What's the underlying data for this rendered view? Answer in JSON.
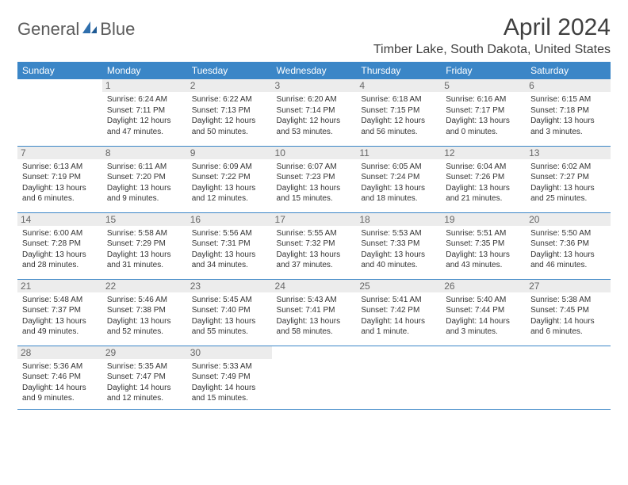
{
  "brand": {
    "part1": "General",
    "part2": "Blue"
  },
  "colors": {
    "header_bg": "#3b86c7",
    "header_text": "#ffffff",
    "daynum_bg": "#ececec",
    "daynum_text": "#666666",
    "body_text": "#333333",
    "title_text": "#404040",
    "logo_gray": "#5a5a5a",
    "logo_blue": "#2f6fad",
    "border": "#3b86c7"
  },
  "title": "April 2024",
  "location": "Timber Lake, South Dakota, United States",
  "day_headers": [
    "Sunday",
    "Monday",
    "Tuesday",
    "Wednesday",
    "Thursday",
    "Friday",
    "Saturday"
  ],
  "weeks": [
    [
      null,
      {
        "n": "1",
        "sr": "Sunrise: 6:24 AM",
        "ss": "Sunset: 7:11 PM",
        "d1": "Daylight: 12 hours",
        "d2": "and 47 minutes."
      },
      {
        "n": "2",
        "sr": "Sunrise: 6:22 AM",
        "ss": "Sunset: 7:13 PM",
        "d1": "Daylight: 12 hours",
        "d2": "and 50 minutes."
      },
      {
        "n": "3",
        "sr": "Sunrise: 6:20 AM",
        "ss": "Sunset: 7:14 PM",
        "d1": "Daylight: 12 hours",
        "d2": "and 53 minutes."
      },
      {
        "n": "4",
        "sr": "Sunrise: 6:18 AM",
        "ss": "Sunset: 7:15 PM",
        "d1": "Daylight: 12 hours",
        "d2": "and 56 minutes."
      },
      {
        "n": "5",
        "sr": "Sunrise: 6:16 AM",
        "ss": "Sunset: 7:17 PM",
        "d1": "Daylight: 13 hours",
        "d2": "and 0 minutes."
      },
      {
        "n": "6",
        "sr": "Sunrise: 6:15 AM",
        "ss": "Sunset: 7:18 PM",
        "d1": "Daylight: 13 hours",
        "d2": "and 3 minutes."
      }
    ],
    [
      {
        "n": "7",
        "sr": "Sunrise: 6:13 AM",
        "ss": "Sunset: 7:19 PM",
        "d1": "Daylight: 13 hours",
        "d2": "and 6 minutes."
      },
      {
        "n": "8",
        "sr": "Sunrise: 6:11 AM",
        "ss": "Sunset: 7:20 PM",
        "d1": "Daylight: 13 hours",
        "d2": "and 9 minutes."
      },
      {
        "n": "9",
        "sr": "Sunrise: 6:09 AM",
        "ss": "Sunset: 7:22 PM",
        "d1": "Daylight: 13 hours",
        "d2": "and 12 minutes."
      },
      {
        "n": "10",
        "sr": "Sunrise: 6:07 AM",
        "ss": "Sunset: 7:23 PM",
        "d1": "Daylight: 13 hours",
        "d2": "and 15 minutes."
      },
      {
        "n": "11",
        "sr": "Sunrise: 6:05 AM",
        "ss": "Sunset: 7:24 PM",
        "d1": "Daylight: 13 hours",
        "d2": "and 18 minutes."
      },
      {
        "n": "12",
        "sr": "Sunrise: 6:04 AM",
        "ss": "Sunset: 7:26 PM",
        "d1": "Daylight: 13 hours",
        "d2": "and 21 minutes."
      },
      {
        "n": "13",
        "sr": "Sunrise: 6:02 AM",
        "ss": "Sunset: 7:27 PM",
        "d1": "Daylight: 13 hours",
        "d2": "and 25 minutes."
      }
    ],
    [
      {
        "n": "14",
        "sr": "Sunrise: 6:00 AM",
        "ss": "Sunset: 7:28 PM",
        "d1": "Daylight: 13 hours",
        "d2": "and 28 minutes."
      },
      {
        "n": "15",
        "sr": "Sunrise: 5:58 AM",
        "ss": "Sunset: 7:29 PM",
        "d1": "Daylight: 13 hours",
        "d2": "and 31 minutes."
      },
      {
        "n": "16",
        "sr": "Sunrise: 5:56 AM",
        "ss": "Sunset: 7:31 PM",
        "d1": "Daylight: 13 hours",
        "d2": "and 34 minutes."
      },
      {
        "n": "17",
        "sr": "Sunrise: 5:55 AM",
        "ss": "Sunset: 7:32 PM",
        "d1": "Daylight: 13 hours",
        "d2": "and 37 minutes."
      },
      {
        "n": "18",
        "sr": "Sunrise: 5:53 AM",
        "ss": "Sunset: 7:33 PM",
        "d1": "Daylight: 13 hours",
        "d2": "and 40 minutes."
      },
      {
        "n": "19",
        "sr": "Sunrise: 5:51 AM",
        "ss": "Sunset: 7:35 PM",
        "d1": "Daylight: 13 hours",
        "d2": "and 43 minutes."
      },
      {
        "n": "20",
        "sr": "Sunrise: 5:50 AM",
        "ss": "Sunset: 7:36 PM",
        "d1": "Daylight: 13 hours",
        "d2": "and 46 minutes."
      }
    ],
    [
      {
        "n": "21",
        "sr": "Sunrise: 5:48 AM",
        "ss": "Sunset: 7:37 PM",
        "d1": "Daylight: 13 hours",
        "d2": "and 49 minutes."
      },
      {
        "n": "22",
        "sr": "Sunrise: 5:46 AM",
        "ss": "Sunset: 7:38 PM",
        "d1": "Daylight: 13 hours",
        "d2": "and 52 minutes."
      },
      {
        "n": "23",
        "sr": "Sunrise: 5:45 AM",
        "ss": "Sunset: 7:40 PM",
        "d1": "Daylight: 13 hours",
        "d2": "and 55 minutes."
      },
      {
        "n": "24",
        "sr": "Sunrise: 5:43 AM",
        "ss": "Sunset: 7:41 PM",
        "d1": "Daylight: 13 hours",
        "d2": "and 58 minutes."
      },
      {
        "n": "25",
        "sr": "Sunrise: 5:41 AM",
        "ss": "Sunset: 7:42 PM",
        "d1": "Daylight: 14 hours",
        "d2": "and 1 minute."
      },
      {
        "n": "26",
        "sr": "Sunrise: 5:40 AM",
        "ss": "Sunset: 7:44 PM",
        "d1": "Daylight: 14 hours",
        "d2": "and 3 minutes."
      },
      {
        "n": "27",
        "sr": "Sunrise: 5:38 AM",
        "ss": "Sunset: 7:45 PM",
        "d1": "Daylight: 14 hours",
        "d2": "and 6 minutes."
      }
    ],
    [
      {
        "n": "28",
        "sr": "Sunrise: 5:36 AM",
        "ss": "Sunset: 7:46 PM",
        "d1": "Daylight: 14 hours",
        "d2": "and 9 minutes."
      },
      {
        "n": "29",
        "sr": "Sunrise: 5:35 AM",
        "ss": "Sunset: 7:47 PM",
        "d1": "Daylight: 14 hours",
        "d2": "and 12 minutes."
      },
      {
        "n": "30",
        "sr": "Sunrise: 5:33 AM",
        "ss": "Sunset: 7:49 PM",
        "d1": "Daylight: 14 hours",
        "d2": "and 15 minutes."
      },
      null,
      null,
      null,
      null
    ]
  ]
}
